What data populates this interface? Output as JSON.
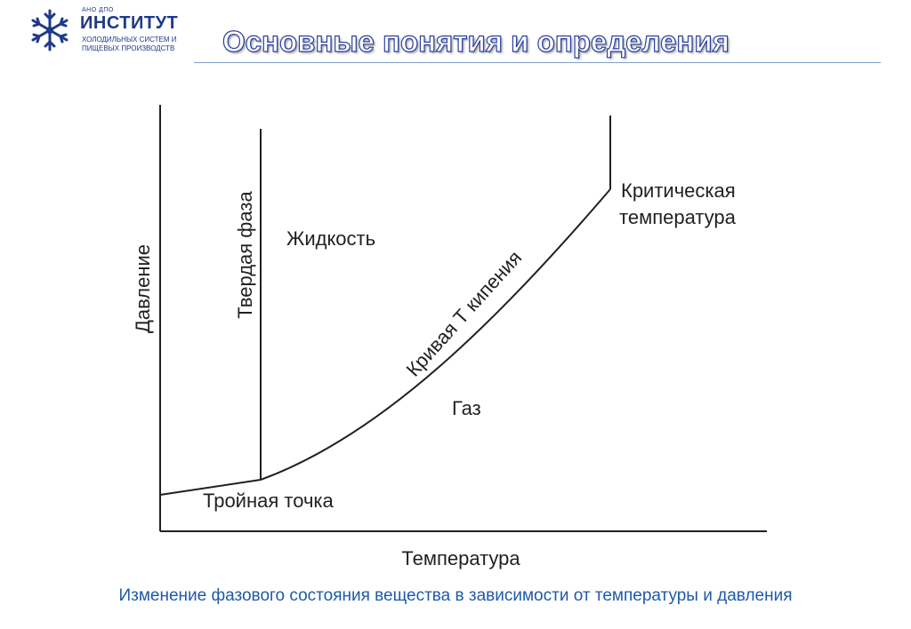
{
  "logo": {
    "top_line": "АНО ДПО",
    "name": "ИНСТИТУТ",
    "subtitle_line1": "ХОЛОДИЛЬНЫХ СИСТЕМ И",
    "subtitle_line2": "ПИЩЕВЫХ ПРОИЗВОДСТВ",
    "icon": "snowflake-icon",
    "color": "#1f3a8a"
  },
  "slide": {
    "title": "Основные понятия и определения",
    "caption": "Изменение фазового состояния вещества в зависимости от температуры и давления"
  },
  "diagram": {
    "axis_x_label": "Температура",
    "axis_y_label": "Давление",
    "region_solid": "Твердая фаза",
    "region_liquid": "Жидкость",
    "region_gas": "Газ",
    "boiling_curve_label": "Кривая Т кипения",
    "triple_point_label": "Тройная точка",
    "critical_label_line1": "Критическая",
    "critical_label_line2": "температура"
  },
  "colors": {
    "title_outline": "#2b3f9e",
    "caption": "#1f5aa8",
    "lines": "#231f20"
  }
}
